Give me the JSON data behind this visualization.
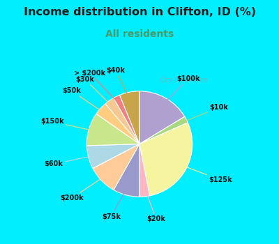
{
  "title": "Income distribution in Clifton, ID (%)",
  "subtitle": "All residents",
  "title_color": "#1a1a1a",
  "subtitle_color": "#4a9a6a",
  "background_outer": "#00eeff",
  "background_inner": "#d8f5e8",
  "labels": [
    "$100k",
    "$10k",
    "$125k",
    "$20k",
    "$75k",
    "$200k",
    "$60k",
    "$150k",
    "$50k",
    "$30k",
    "> $200k",
    "$40k"
  ],
  "values": [
    16,
    2,
    28,
    3,
    8,
    9,
    7,
    10,
    4,
    3,
    2,
    6
  ],
  "colors": [
    "#b0a0d0",
    "#a8d880",
    "#f5f5a0",
    "#ffb6c1",
    "#9999cc",
    "#ffcc99",
    "#add8e6",
    "#c8e68c",
    "#ffcc80",
    "#f4c890",
    "#f08080",
    "#c8a44a"
  ],
  "watermark": "City-Data.com",
  "startangle": 90
}
